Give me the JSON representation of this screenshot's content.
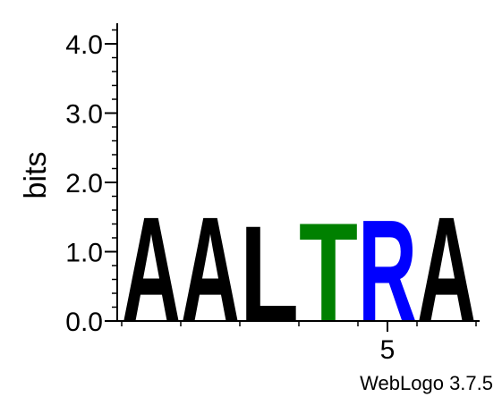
{
  "chart_data": {
    "type": "sequence_logo",
    "ylabel": "bits",
    "ylim": [
      0,
      4.3
    ],
    "y_ticks": [
      "0.0",
      "1.0",
      "2.0",
      "3.0",
      "4.0"
    ],
    "y_tick_values": [
      0,
      1,
      2,
      3,
      4
    ],
    "x_tick_labels": [
      "5"
    ],
    "x_tick_positions": [
      5
    ],
    "positions": [
      1,
      2,
      3,
      4,
      5,
      6
    ],
    "letters": [
      "A",
      "A",
      "L",
      "T",
      "R",
      "A"
    ],
    "heights": [
      1.75,
      1.75,
      1.6,
      1.65,
      1.7,
      1.75
    ],
    "colors": {
      "A": "#000000",
      "L": "#000000",
      "T": "#008000",
      "R": "#0000ff"
    },
    "grid": false
  },
  "footer": {
    "credit": "WebLogo 3.7.5"
  }
}
